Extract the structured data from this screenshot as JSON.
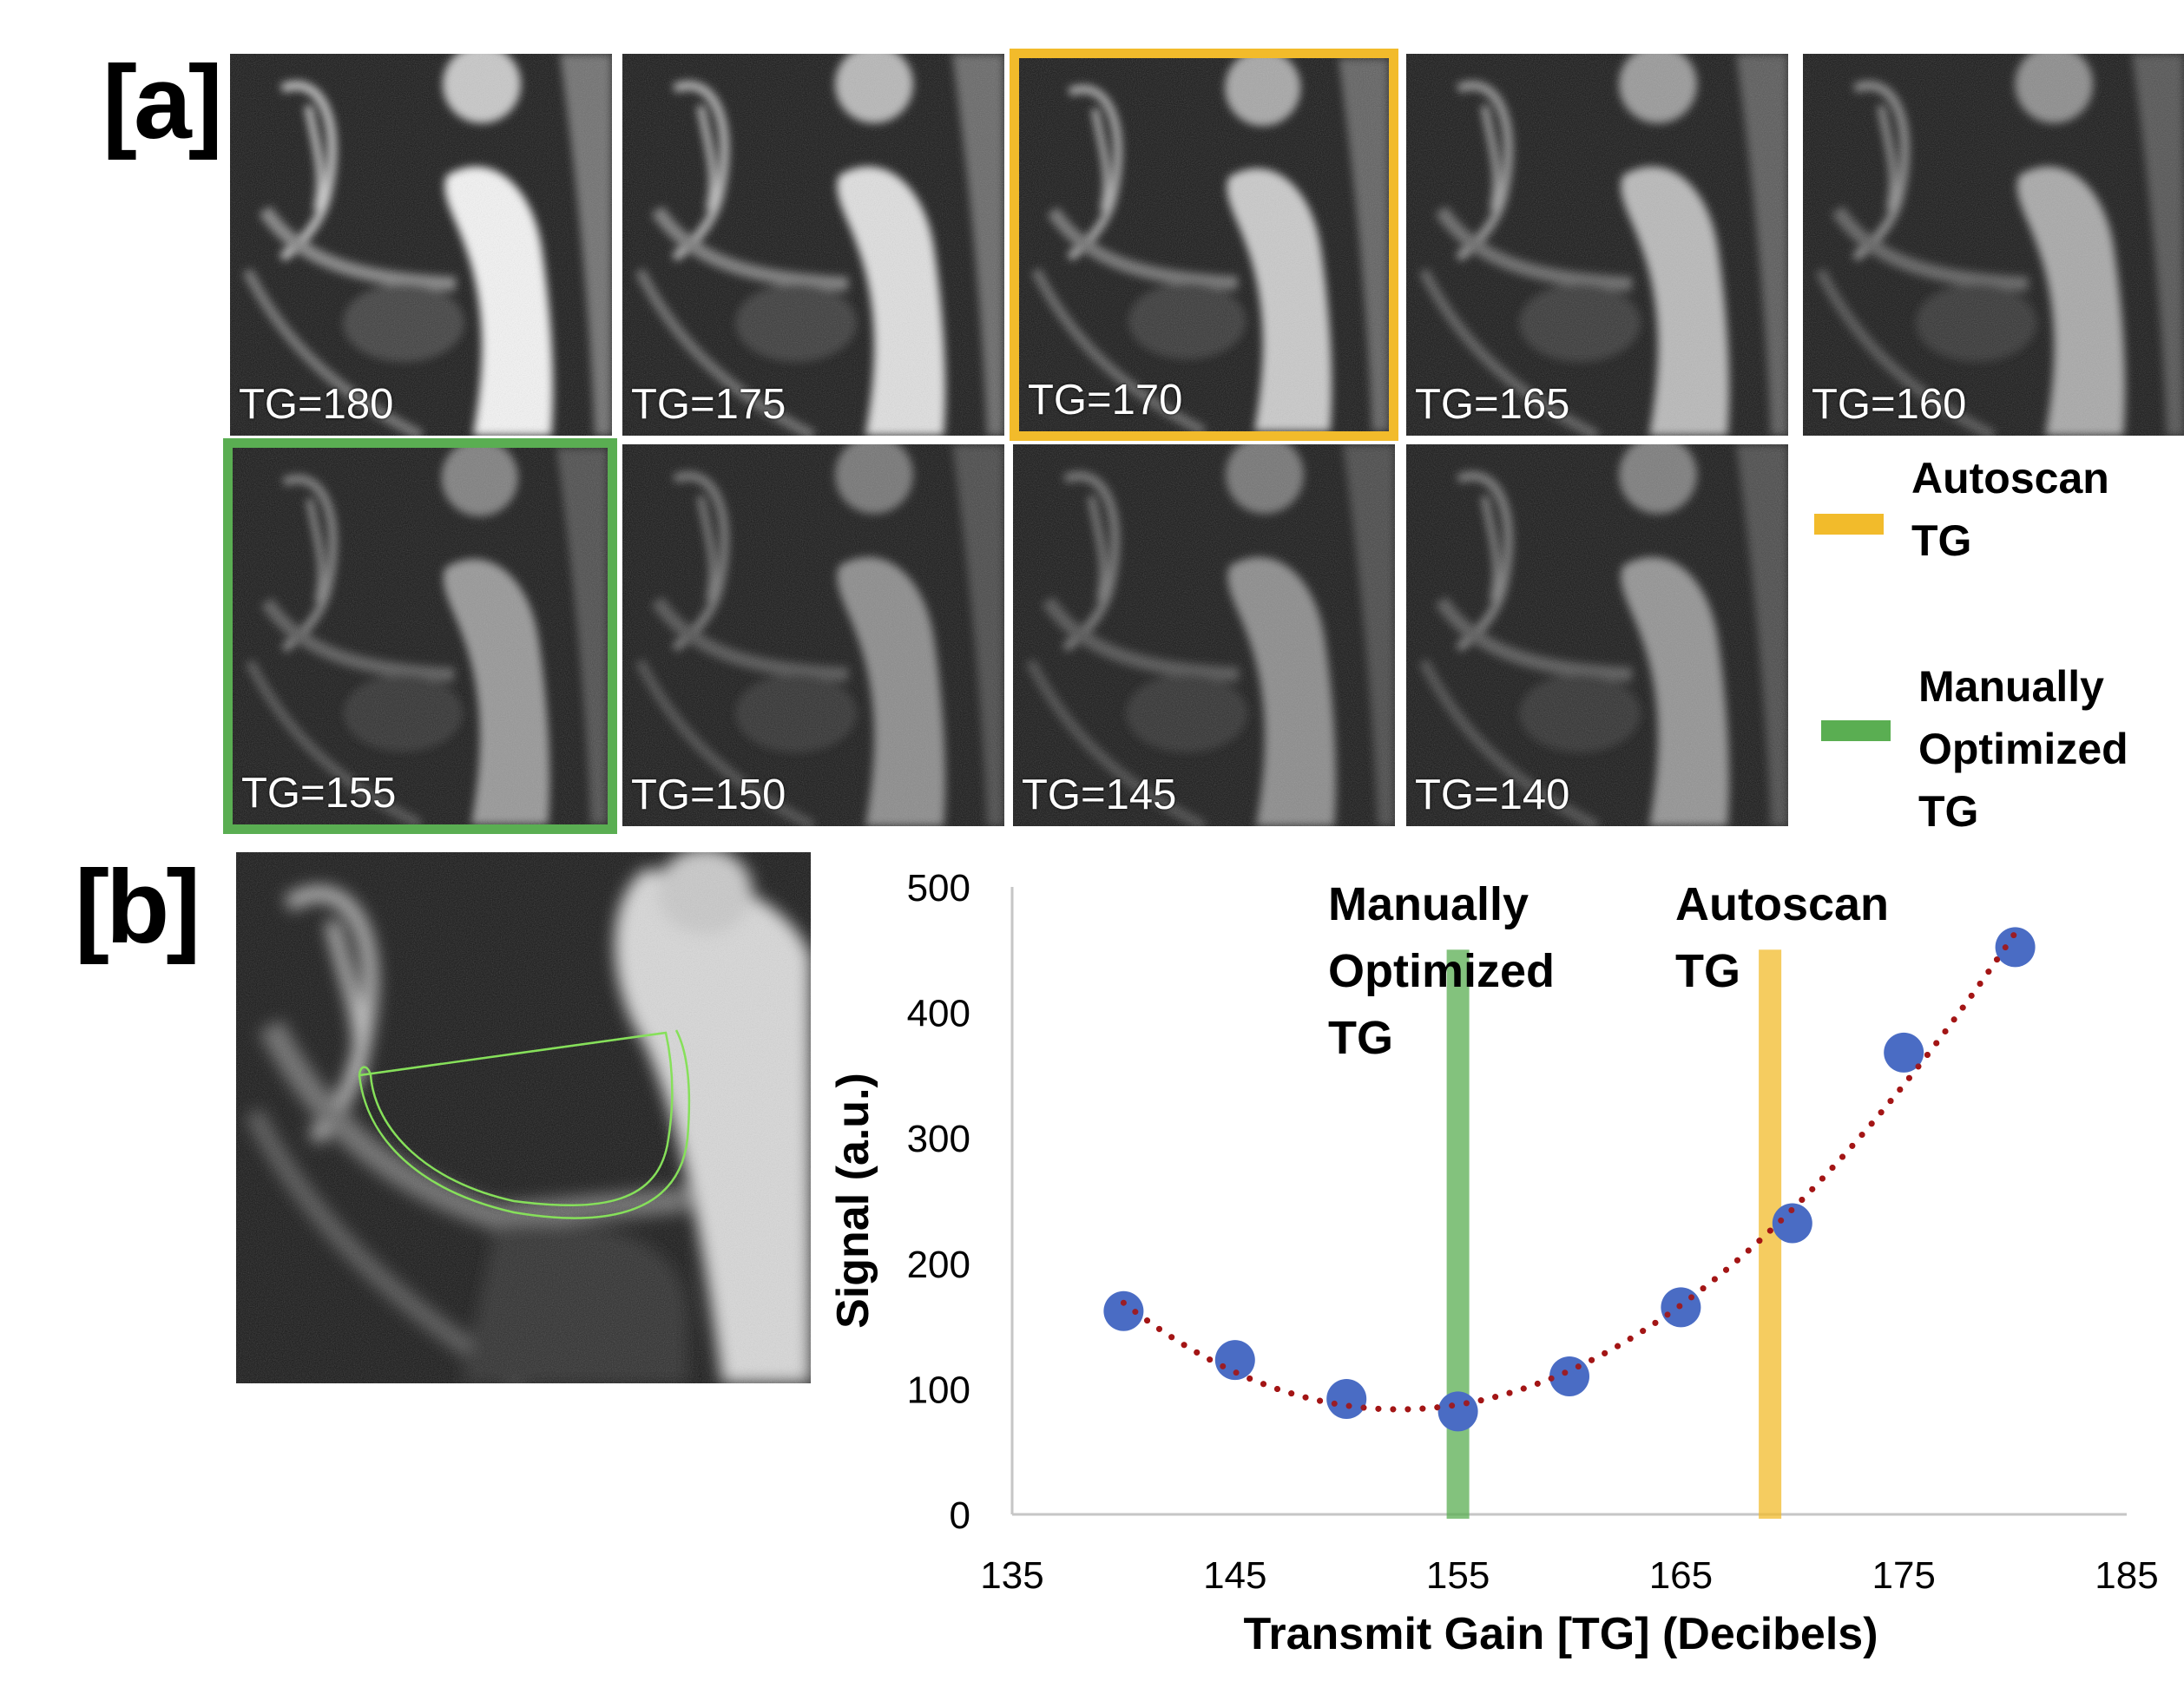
{
  "panel_a": {
    "label": "[a]",
    "images": [
      {
        "tg": "TG=180",
        "brightness": 1.0,
        "highlight": ""
      },
      {
        "tg": "TG=175",
        "brightness": 0.9,
        "highlight": ""
      },
      {
        "tg": "TG=170",
        "brightness": 0.8,
        "highlight": "auto"
      },
      {
        "tg": "TG=165",
        "brightness": 0.72,
        "highlight": ""
      },
      {
        "tg": "TG=160",
        "brightness": 0.64,
        "highlight": ""
      },
      {
        "tg": "TG=155",
        "brightness": 0.56,
        "highlight": "manual"
      },
      {
        "tg": "TG=150",
        "brightness": 0.5,
        "highlight": ""
      },
      {
        "tg": "TG=145",
        "brightness": 0.5,
        "highlight": ""
      },
      {
        "tg": "TG=140",
        "brightness": 0.54,
        "highlight": ""
      }
    ]
  },
  "legend": {
    "autoscan": {
      "line1": "Autoscan",
      "line2": "TG",
      "color": "#f2bb2b"
    },
    "manual": {
      "line1": "Manually",
      "line2": "Optimized",
      "line3": "TG",
      "color": "#5aae52"
    }
  },
  "panel_b": {
    "label": "[b]"
  },
  "chart_data": {
    "type": "scatter",
    "title": "",
    "xlabel": "Transmit Gain [TG] (Decibels)",
    "ylabel": "Signal (a.u.)",
    "xlim": [
      135,
      185
    ],
    "ylim": [
      0,
      500
    ],
    "xticks": [
      "135",
      "145",
      "155",
      "165",
      "175",
      "185"
    ],
    "yticks": [
      "0",
      "100",
      "200",
      "300",
      "400",
      "500"
    ],
    "x": [
      140,
      145,
      150,
      155,
      160,
      165,
      170,
      175,
      180
    ],
    "y": [
      162,
      123,
      92,
      82,
      110,
      165,
      232,
      368,
      452
    ],
    "trendline": {
      "style": "dotted",
      "color": "#a31515",
      "fit": "polynomial"
    },
    "point_color": "#4a6cc4",
    "vlines": [
      {
        "x": 155,
        "color": "#5aae52",
        "label_lines": [
          "Manually",
          "Optimized",
          "TG"
        ]
      },
      {
        "x": 169,
        "color": "#f2bb2b",
        "label_lines": [
          "Autoscan",
          "TG"
        ]
      }
    ]
  }
}
